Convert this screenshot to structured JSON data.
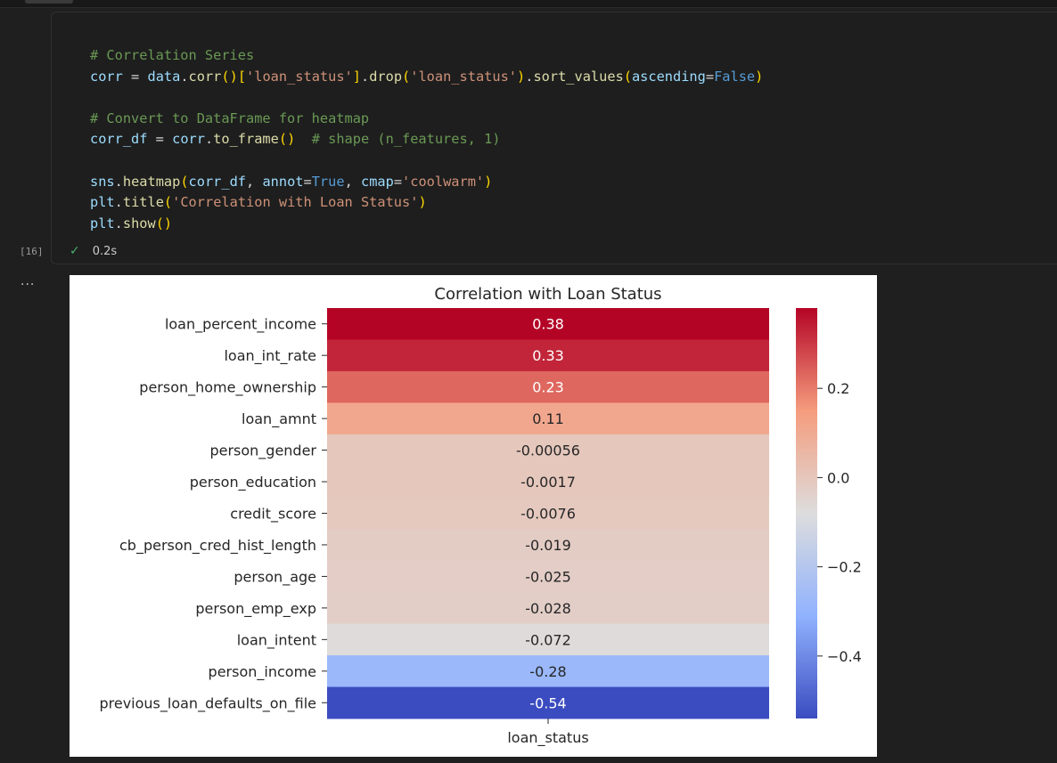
{
  "cell": {
    "execution_count": "[16]",
    "status_time": "0.2s",
    "output_prompt": "...",
    "code_lines": [
      [
        {
          "t": "# Correlation Series",
          "c": "cm"
        }
      ],
      [
        {
          "t": "corr",
          "c": "id"
        },
        {
          "t": " = ",
          "c": "op"
        },
        {
          "t": "data",
          "c": "id"
        },
        {
          "t": ".",
          "c": "op"
        },
        {
          "t": "corr",
          "c": "fn"
        },
        {
          "t": "()",
          "c": "br1"
        },
        {
          "t": "[",
          "c": "br1"
        },
        {
          "t": "'loan_status'",
          "c": "st"
        },
        {
          "t": "]",
          "c": "br1"
        },
        {
          "t": ".",
          "c": "op"
        },
        {
          "t": "drop",
          "c": "fn"
        },
        {
          "t": "(",
          "c": "br1"
        },
        {
          "t": "'loan_status'",
          "c": "st"
        },
        {
          "t": ")",
          "c": "br1"
        },
        {
          "t": ".",
          "c": "op"
        },
        {
          "t": "sort_values",
          "c": "fn"
        },
        {
          "t": "(",
          "c": "br1"
        },
        {
          "t": "ascending",
          "c": "id"
        },
        {
          "t": "=",
          "c": "op"
        },
        {
          "t": "False",
          "c": "kw"
        },
        {
          "t": ")",
          "c": "br1"
        }
      ],
      [],
      [
        {
          "t": "# Convert to DataFrame for heatmap",
          "c": "cm"
        }
      ],
      [
        {
          "t": "corr_df",
          "c": "id"
        },
        {
          "t": " = ",
          "c": "op"
        },
        {
          "t": "corr",
          "c": "id"
        },
        {
          "t": ".",
          "c": "op"
        },
        {
          "t": "to_frame",
          "c": "fn"
        },
        {
          "t": "()",
          "c": "br1"
        },
        {
          "t": "  # shape (n_features, 1)",
          "c": "cm"
        }
      ],
      [],
      [
        {
          "t": "sns",
          "c": "id"
        },
        {
          "t": ".",
          "c": "op"
        },
        {
          "t": "heatmap",
          "c": "fn"
        },
        {
          "t": "(",
          "c": "br1"
        },
        {
          "t": "corr_df",
          "c": "id"
        },
        {
          "t": ", ",
          "c": "op"
        },
        {
          "t": "annot",
          "c": "id"
        },
        {
          "t": "=",
          "c": "op"
        },
        {
          "t": "True",
          "c": "kw"
        },
        {
          "t": ", ",
          "c": "op"
        },
        {
          "t": "cmap",
          "c": "id"
        },
        {
          "t": "=",
          "c": "op"
        },
        {
          "t": "'coolwarm'",
          "c": "st"
        },
        {
          "t": ")",
          "c": "br1"
        }
      ],
      [
        {
          "t": "plt",
          "c": "id"
        },
        {
          "t": ".",
          "c": "op"
        },
        {
          "t": "title",
          "c": "fn"
        },
        {
          "t": "(",
          "c": "br1"
        },
        {
          "t": "'Correlation with Loan Status'",
          "c": "st"
        },
        {
          "t": ")",
          "c": "br1"
        }
      ],
      [
        {
          "t": "plt",
          "c": "id"
        },
        {
          "t": ".",
          "c": "op"
        },
        {
          "t": "show",
          "c": "fn"
        },
        {
          "t": "()",
          "c": "br1"
        }
      ]
    ]
  },
  "chart_data": {
    "type": "heatmap",
    "title": "Correlation with Loan Status",
    "xlabel": "",
    "ylabel": "",
    "x_tick_labels": [
      "loan_status"
    ],
    "rows": [
      "loan_percent_income",
      "loan_int_rate",
      "person_home_ownership",
      "loan_amnt",
      "person_gender",
      "person_education",
      "credit_score",
      "cb_person_cred_hist_length",
      "person_age",
      "person_emp_exp",
      "loan_intent",
      "person_income",
      "previous_loan_defaults_on_file"
    ],
    "values": [
      0.38,
      0.33,
      0.23,
      0.11,
      -0.00056,
      -0.0017,
      -0.0076,
      -0.019,
      -0.025,
      -0.028,
      -0.072,
      -0.28,
      -0.54
    ],
    "annotations": [
      "0.38",
      "0.33",
      "0.23",
      "0.11",
      "-0.00056",
      "-0.0017",
      "-0.0076",
      "-0.019",
      "-0.025",
      "-0.028",
      "-0.072",
      "-0.28",
      "-0.54"
    ],
    "colormap": "coolwarm",
    "vmin": -0.54,
    "vmax": 0.38,
    "colorbar_ticks": [
      0.2,
      0.0,
      -0.2,
      -0.4
    ],
    "colorbar_tick_labels": [
      "0.2",
      "0.0",
      "−0.2",
      "−0.4"
    ]
  }
}
